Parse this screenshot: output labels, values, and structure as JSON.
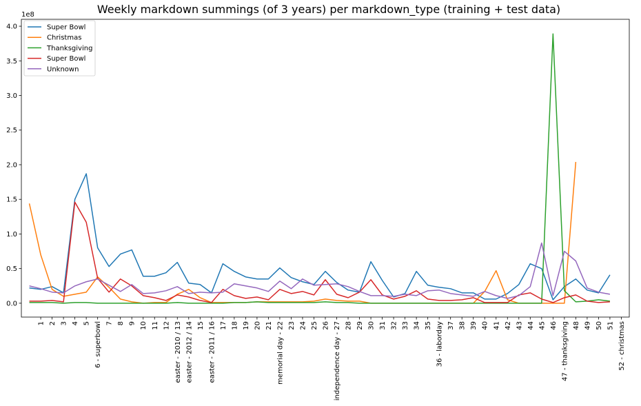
{
  "chart_data": {
    "type": "line",
    "title": "Weekly markdown summings (of 3 years) per markdown_type (training + test data)",
    "xlabel": "",
    "ylabel": "",
    "y_scale_label": "1e8",
    "xlim": [
      -0.7,
      52.7
    ],
    "ylim": [
      -20000000.0,
      410000000.0
    ],
    "y_ticks": [
      0,
      50000000.0,
      100000000.0,
      150000000.0,
      200000000.0,
      250000000.0,
      300000000.0,
      350000000.0,
      400000000.0
    ],
    "y_tick_labels": [
      "0.0",
      "0.5",
      "1.0",
      "1.5",
      "2.0",
      "2.5",
      "3.0",
      "3.5",
      "4.0"
    ],
    "x_ticks": [
      1,
      2,
      3,
      4,
      5,
      6,
      7,
      8,
      9,
      10,
      11,
      12,
      13,
      14,
      15,
      16,
      17,
      18,
      19,
      20,
      21,
      22,
      23,
      24,
      25,
      26,
      27,
      28,
      29,
      30,
      31,
      32,
      33,
      34,
      35,
      36,
      37,
      38,
      39,
      40,
      41,
      42,
      43,
      44,
      45,
      46,
      47,
      48,
      49,
      50,
      51,
      52
    ],
    "x_tick_labels": [
      "1",
      "2",
      "3",
      "4",
      "5",
      "6 - superbowl",
      "7",
      "8",
      "9",
      "10",
      "11",
      "12",
      "easter - 2010 / 13",
      "easter - 2012 / 14",
      "15",
      "easter - 2011 / 16",
      "17",
      "18",
      "19",
      "20",
      "21",
      "memorial day - 22",
      "23",
      "24",
      "25",
      "26",
      "independence day - 27",
      "28",
      "29",
      "30",
      "31",
      "32",
      "33",
      "34",
      "35",
      "36 - laborday",
      "37",
      "38",
      "39",
      "40",
      "41",
      "42",
      "43",
      "44",
      "45",
      "46",
      "47 - thanksgiving",
      "48",
      "49",
      "50",
      "51",
      "52 - christmas"
    ],
    "grid": false,
    "legend_position": "top-left",
    "x": [
      0,
      1,
      2,
      3,
      4,
      5,
      6,
      7,
      8,
      9,
      10,
      11,
      12,
      13,
      14,
      15,
      16,
      17,
      18,
      19,
      20,
      21,
      22,
      23,
      24,
      25,
      26,
      27,
      28,
      29,
      30,
      31,
      32,
      33,
      34,
      35,
      36,
      37,
      38,
      39,
      40,
      41,
      42,
      43,
      44,
      45,
      46,
      47,
      48,
      49,
      50,
      51
    ],
    "series": [
      {
        "name": "Super Bowl",
        "color": "#1f77b4",
        "values": [
          22000000.0,
          20000000.0,
          24000000.0,
          15000000.0,
          150000000.0,
          187000000.0,
          80000000.0,
          53000000.0,
          71000000.0,
          77000000.0,
          39000000.0,
          39000000.0,
          44000000.0,
          59000000.0,
          29000000.0,
          27000000.0,
          15000000.0,
          57000000.0,
          46000000.0,
          38000000.0,
          35000000.0,
          35000000.0,
          51000000.0,
          37000000.0,
          31000000.0,
          27000000.0,
          46000000.0,
          30000000.0,
          19000000.0,
          16000000.0,
          60000000.0,
          33000000.0,
          9000000.0,
          14000000.0,
          46000000.0,
          26000000.0,
          23000000.0,
          21000000.0,
          15000000.0,
          15000000.0,
          6000000.0,
          6000000.0,
          14000000.0,
          27000000.0,
          57000000.0,
          50000000.0,
          5000000.0,
          24000000.0,
          35000000.0,
          19000000.0,
          15000000.0,
          41000000.0
        ]
      },
      {
        "name": "Christmas",
        "color": "#ff7f0e",
        "values": [
          144000000.0,
          70000000.0,
          20000000.0,
          10000000.0,
          13000000.0,
          16000000.0,
          38000000.0,
          23000000.0,
          6000000.0,
          2000000.0,
          0.0,
          1000000.0,
          1000000.0,
          13000000.0,
          20000000.0,
          8000000.0,
          1000000.0,
          1000000.0,
          1000000.0,
          1000000.0,
          2000000.0,
          2000000.0,
          2000000.0,
          2000000.0,
          2000000.0,
          3000000.0,
          6000000.0,
          4000000.0,
          3000000.0,
          3000000.0,
          0.0,
          0.0,
          0.0,
          0.0,
          0.0,
          0.0,
          0.0,
          0.0,
          0.0,
          0.0,
          17000000.0,
          47000000.0,
          5000000.0,
          0.0,
          0.0,
          0.0,
          0.0,
          0.0,
          204000000.0,
          null,
          null,
          null
        ]
      },
      {
        "name": "Thanksgiving",
        "color": "#2ca02c",
        "values": [
          1000000.0,
          1000000.0,
          1000000.0,
          0.0,
          1000000.0,
          1000000.0,
          0.0,
          0.0,
          0.0,
          0.0,
          0.0,
          0.0,
          0.0,
          1000000.0,
          0.0,
          0.0,
          0.0,
          0.0,
          1000000.0,
          1000000.0,
          2000000.0,
          1000000.0,
          1000000.0,
          1000000.0,
          1000000.0,
          1000000.0,
          2000000.0,
          1000000.0,
          1000000.0,
          0.0,
          0.0,
          0.0,
          0.0,
          0.0,
          0.0,
          0.0,
          0.0,
          0.0,
          0.0,
          0.0,
          0.0,
          0.0,
          0.0,
          0.0,
          0.0,
          0.0,
          389000000.0,
          18000000.0,
          2000000.0,
          3000000.0,
          5000000.0,
          3000000.0
        ]
      },
      {
        "name": "Super Bowl",
        "color": "#d62728",
        "values": [
          3000000.0,
          3000000.0,
          4000000.0,
          2000000.0,
          146000000.0,
          117000000.0,
          36000000.0,
          16000000.0,
          35000000.0,
          25000000.0,
          11000000.0,
          8000000.0,
          4000000.0,
          12000000.0,
          9000000.0,
          4000000.0,
          1000000.0,
          20000000.0,
          11000000.0,
          7000000.0,
          9000000.0,
          5000000.0,
          20000000.0,
          14000000.0,
          17000000.0,
          12000000.0,
          34000000.0,
          13000000.0,
          8000000.0,
          16000000.0,
          34000000.0,
          12000000.0,
          6000000.0,
          10000000.0,
          18000000.0,
          6000000.0,
          4000000.0,
          4000000.0,
          5000000.0,
          8000000.0,
          1000000.0,
          1000000.0,
          1000000.0,
          12000000.0,
          15000000.0,
          6000000.0,
          1000000.0,
          8000000.0,
          12000000.0,
          3000000.0,
          1000000.0,
          2000000.0
        ]
      },
      {
        "name": "Unknown",
        "color": "#9467bd",
        "values": [
          25000000.0,
          21000000.0,
          16000000.0,
          15000000.0,
          25000000.0,
          31000000.0,
          35000000.0,
          26000000.0,
          17000000.0,
          27000000.0,
          14000000.0,
          15000000.0,
          18000000.0,
          24000000.0,
          14000000.0,
          16000000.0,
          15000000.0,
          16000000.0,
          28000000.0,
          25000000.0,
          22000000.0,
          17000000.0,
          32000000.0,
          21000000.0,
          35000000.0,
          26000000.0,
          27000000.0,
          28000000.0,
          24000000.0,
          17000000.0,
          11000000.0,
          11000000.0,
          10000000.0,
          13000000.0,
          11000000.0,
          18000000.0,
          19000000.0,
          14000000.0,
          12000000.0,
          10000000.0,
          17000000.0,
          11000000.0,
          7000000.0,
          11000000.0,
          24000000.0,
          87000000.0,
          11000000.0,
          75000000.0,
          61000000.0,
          22000000.0,
          16000000.0,
          13000000.0
        ]
      }
    ]
  }
}
